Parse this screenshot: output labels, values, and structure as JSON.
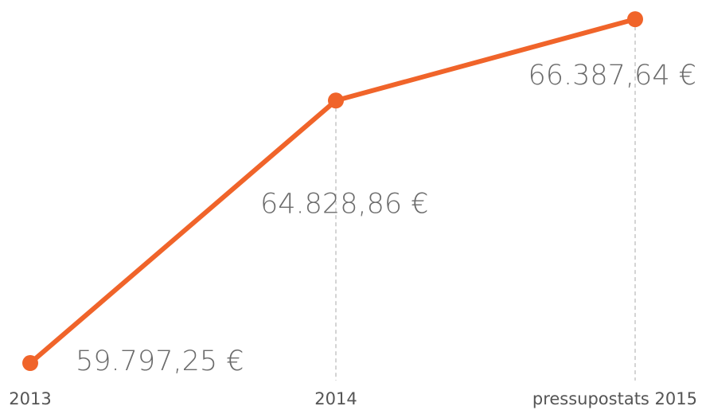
{
  "chart_data": {
    "type": "line",
    "categories": [
      "2013",
      "2014",
      "pressupostats 2015"
    ],
    "values": [
      59797.25,
      64828.86,
      66387.64
    ],
    "value_labels": [
      "59.797,25 €",
      "64.828,86 €",
      "66.387,64 €"
    ],
    "color": "#f0642a",
    "ylim": [
      59000,
      67000
    ]
  }
}
